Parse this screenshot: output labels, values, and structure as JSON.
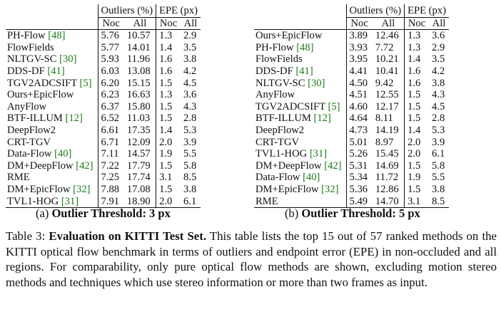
{
  "tables": [
    {
      "id": "a",
      "headers": {
        "outliers": "Outliers (%)",
        "epe": "EPE (px)",
        "noc": "Noc",
        "all": "All"
      },
      "rows": [
        {
          "method": "PH-Flow",
          "cite": "[48]",
          "o_noc": "5.76",
          "o_all": "10.57",
          "e_noc": "1.3",
          "e_all": "2.9",
          "bold": [
            "o_noc",
            "o_all",
            "e_noc"
          ]
        },
        {
          "method": "FlowFields",
          "cite": "",
          "o_noc": "5.77",
          "o_all": "14.01",
          "e_noc": "1.4",
          "e_all": "3.5",
          "bold": []
        },
        {
          "method": "NLTGV-SC",
          "cite": "[30]",
          "o_noc": "5.93",
          "o_all": "11.96",
          "e_noc": "1.6",
          "e_all": "3.8",
          "bold": []
        },
        {
          "method": "DDS-DF",
          "cite": "[41]",
          "o_noc": "6.03",
          "o_all": "13.08",
          "e_noc": "1.6",
          "e_all": "4.2",
          "bold": []
        },
        {
          "method": "TGV2ADCSIFT",
          "cite": "[5]",
          "o_noc": "6.20",
          "o_all": "15.15",
          "e_noc": "1.5",
          "e_all": "4.5",
          "bold": []
        },
        {
          "method": "Ours+EpicFlow",
          "cite": "",
          "o_noc": "6.23",
          "o_all": "16.63",
          "e_noc": "1.3",
          "e_all": "3.6",
          "bold": [
            "e_noc"
          ]
        },
        {
          "method": "AnyFlow",
          "cite": "",
          "o_noc": "6.37",
          "o_all": "15.80",
          "e_noc": "1.5",
          "e_all": "4.3",
          "bold": []
        },
        {
          "method": "BTF-ILLUM",
          "cite": "[12]",
          "o_noc": "6.52",
          "o_all": "11.03",
          "e_noc": "1.5",
          "e_all": "2.8",
          "bold": [
            "e_all"
          ]
        },
        {
          "method": "DeepFlow2",
          "cite": "",
          "o_noc": "6.61",
          "o_all": "17.35",
          "e_noc": "1.4",
          "e_all": "5.3",
          "bold": []
        },
        {
          "method": "CRT-TGV",
          "cite": "",
          "o_noc": "6.71",
          "o_all": "12.09",
          "e_noc": "2.0",
          "e_all": "3.9",
          "bold": []
        },
        {
          "method": "Data-Flow",
          "cite": "[40]",
          "o_noc": "7.11",
          "o_all": "14.57",
          "e_noc": "1.9",
          "e_all": "5.5",
          "bold": []
        },
        {
          "method": "DM+DeepFlow",
          "cite": "[42]",
          "o_noc": "7.22",
          "o_all": "17.79",
          "e_noc": "1.5",
          "e_all": "5.8",
          "bold": []
        },
        {
          "method": "RME",
          "cite": "",
          "o_noc": "7.25",
          "o_all": "17.74",
          "e_noc": "3.1",
          "e_all": "8.5",
          "bold": []
        },
        {
          "method": "DM+EpicFlow",
          "cite": "[32]",
          "o_noc": "7.88",
          "o_all": "17.08",
          "e_noc": "1.5",
          "e_all": "3.8",
          "bold": []
        },
        {
          "method": "TVL1-HOG",
          "cite": "[31]",
          "o_noc": "7.91",
          "o_all": "18.90",
          "e_noc": "2.0",
          "e_all": "6.1",
          "bold": []
        }
      ],
      "caption_prefix": "(a) ",
      "caption_bold": "Outlier Threshold: 3 px"
    },
    {
      "id": "b",
      "headers": {
        "outliers": "Outliers (%)",
        "epe": "EPE (px)",
        "noc": "Noc",
        "all": "All"
      },
      "rows": [
        {
          "method": "Ours+EpicFlow",
          "cite": "",
          "o_noc": "3.89",
          "o_all": "12.46",
          "e_noc": "1.3",
          "e_all": "3.6",
          "bold": [
            "o_noc",
            "e_noc"
          ]
        },
        {
          "method": "PH-Flow",
          "cite": "[48]",
          "o_noc": "3.93",
          "o_all": "7.72",
          "e_noc": "1.3",
          "e_all": "2.9",
          "bold": [
            "o_all",
            "e_noc"
          ]
        },
        {
          "method": "FlowFields",
          "cite": "",
          "o_noc": "3.95",
          "o_all": "10.21",
          "e_noc": "1.4",
          "e_all": "3.5",
          "bold": []
        },
        {
          "method": "DDS-DF",
          "cite": "[41]",
          "o_noc": "4.41",
          "o_all": "10.41",
          "e_noc": "1.6",
          "e_all": "4.2",
          "bold": []
        },
        {
          "method": "NLTGV-SC",
          "cite": "[30]",
          "o_noc": "4.50",
          "o_all": "9.42",
          "e_noc": "1.6",
          "e_all": "3.8",
          "bold": []
        },
        {
          "method": "AnyFlow",
          "cite": "",
          "o_noc": "4.51",
          "o_all": "12.55",
          "e_noc": "1.5",
          "e_all": "4.3",
          "bold": []
        },
        {
          "method": "TGV2ADCSIFT",
          "cite": "[5]",
          "o_noc": "4.60",
          "o_all": "12.17",
          "e_noc": "1.5",
          "e_all": "4.5",
          "bold": []
        },
        {
          "method": "BTF-ILLUM",
          "cite": "[12]",
          "o_noc": "4.64",
          "o_all": "8.11",
          "e_noc": "1.5",
          "e_all": "2.8",
          "bold": [
            "e_all"
          ]
        },
        {
          "method": "DeepFlow2",
          "cite": "",
          "o_noc": "4.73",
          "o_all": "14.19",
          "e_noc": "1.4",
          "e_all": "5.3",
          "bold": []
        },
        {
          "method": "CRT-TGV",
          "cite": "",
          "o_noc": "5.01",
          "o_all": "8.97",
          "e_noc": "2.0",
          "e_all": "3.9",
          "bold": []
        },
        {
          "method": "TVL1-HOG",
          "cite": "[31]",
          "o_noc": "5.26",
          "o_all": "15.45",
          "e_noc": "2.0",
          "e_all": "6.1",
          "bold": []
        },
        {
          "method": "DM+DeepFlow",
          "cite": "[42]",
          "o_noc": "5.31",
          "o_all": "14.69",
          "e_noc": "1.5",
          "e_all": "5.8",
          "bold": []
        },
        {
          "method": "Data-Flow",
          "cite": "[40]",
          "o_noc": "5.34",
          "o_all": "11.72",
          "e_noc": "1.9",
          "e_all": "5.5",
          "bold": []
        },
        {
          "method": "DM+EpicFlow",
          "cite": "[32]",
          "o_noc": "5.36",
          "o_all": "12.86",
          "e_noc": "1.5",
          "e_all": "3.8",
          "bold": []
        },
        {
          "method": "RME",
          "cite": "",
          "o_noc": "5.49",
          "o_all": "14.70",
          "e_noc": "3.1",
          "e_all": "8.5",
          "bold": []
        }
      ],
      "caption_prefix": "(b) ",
      "caption_bold": "Outlier Threshold: 5 px"
    }
  ],
  "main_caption": {
    "label": "Table 3:",
    "title": "Evaluation on KITTI Test Set.",
    "text": "This table lists the top 15 out of 57 ranked methods on the KITTI optical flow benchmark in terms of outliers and endpoint error (EPE) in non-occluded and all regions. For comparability, only pure optical flow methods are shown, excluding motion stereo methods and techniques which use stereo information or more than two frames as input."
  },
  "colors": {
    "citation": "#1a7a1a",
    "text": "#111111"
  }
}
